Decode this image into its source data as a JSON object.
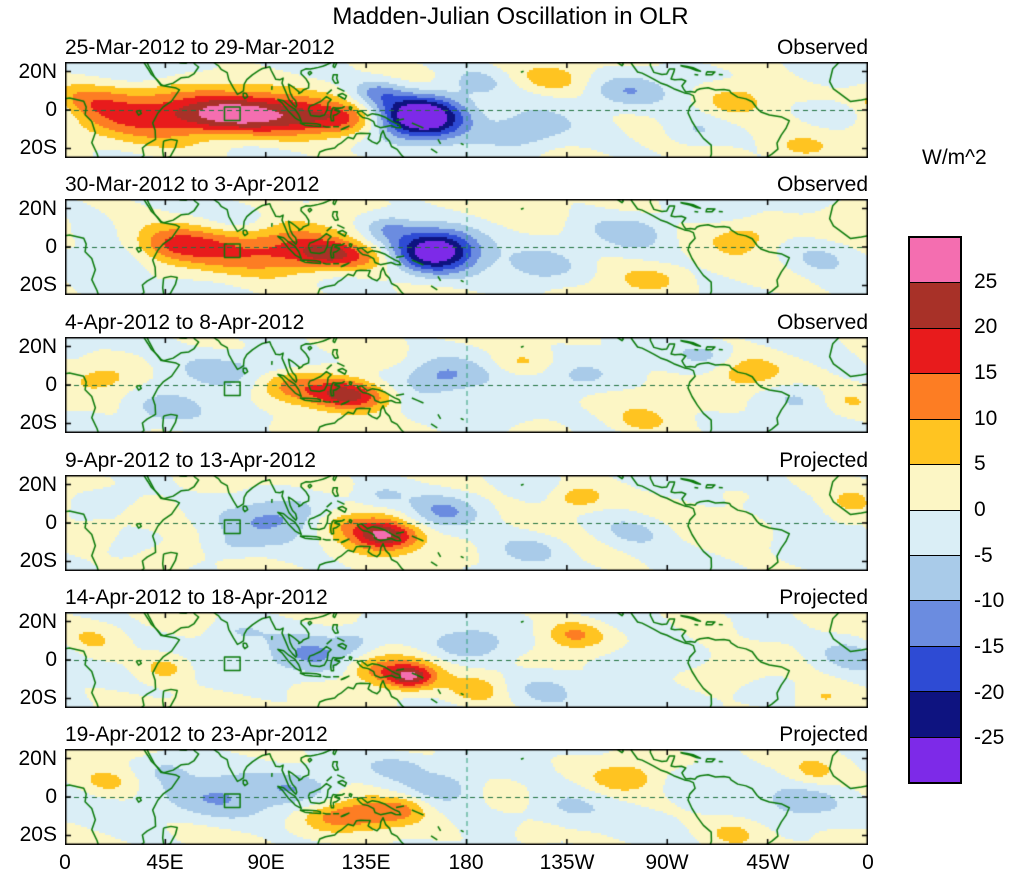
{
  "title": "Madden-Julian Oscillation in OLR",
  "axes": {
    "y_ticks": [
      "20N",
      "0",
      "20S"
    ],
    "x_ticks": [
      "0",
      "45E",
      "90E",
      "135E",
      "180",
      "135W",
      "90W",
      "45W",
      "0"
    ]
  },
  "colorbar": {
    "unit_label": "W/m^2",
    "tick_labels": [
      "25",
      "20",
      "15",
      "10",
      "5",
      "0",
      "-5",
      "-10",
      "-15",
      "-20",
      "-25"
    ]
  },
  "chart_data": {
    "type": "heatmap",
    "subtype": "filled-contour-longitude-latitude-map-sequence",
    "lon_range": [
      0,
      360
    ],
    "lat_range": [
      -25,
      25
    ],
    "levels_wm2": [
      -25,
      -20,
      -15,
      -10,
      -5,
      0,
      5,
      10,
      15,
      20,
      25
    ],
    "colors_low_to_high": [
      "#7d2ae8",
      "#0e1380",
      "#2e4bd4",
      "#6b8ce0",
      "#a9cbe9",
      "#daeef6",
      "#fcf6c5",
      "#ffc421",
      "#fd7d23",
      "#e81b1c",
      "#a83128",
      "#f46eb0"
    ],
    "coast_color": "#0a7a0a",
    "grid": {
      "equator_dashed": true,
      "dateline_dashed": true
    },
    "marker_box": {
      "lon": [
        71.5,
        78.5
      ],
      "lat": [
        -5.5,
        1.5
      ]
    },
    "background_ripple": {
      "amp": 2.3,
      "amp2": 1.2
    },
    "panels": [
      {
        "date_range": "25-Mar-2012 to 29-Mar-2012",
        "status": "Observed",
        "blobs": [
          [
            40,
            -1,
            16,
            28,
            10
          ],
          [
            85,
            -2,
            16,
            18,
            8
          ],
          [
            68,
            -3,
            8,
            14,
            6
          ],
          [
            112,
            -4,
            13,
            16,
            7
          ],
          [
            128,
            -5,
            8,
            10,
            6
          ],
          [
            300,
            5,
            9,
            11,
            6
          ],
          [
            330,
            -20,
            6,
            10,
            5
          ],
          [
            218,
            16,
            6,
            10,
            5
          ],
          [
            10,
            6,
            6,
            12,
            6
          ],
          [
            160,
            -3,
            -34,
            14,
            8
          ],
          [
            140,
            9,
            -10,
            8,
            5
          ],
          [
            205,
            -12,
            -9,
            13,
            7
          ],
          [
            252,
            10,
            -9,
            12,
            6
          ],
          [
            350,
            -2,
            -8,
            12,
            6
          ],
          [
            282,
            -12,
            -6,
            10,
            6
          ],
          [
            35,
            20,
            -5,
            10,
            5
          ],
          [
            185,
            15,
            -6,
            9,
            5
          ]
        ]
      },
      {
        "date_range": "30-Mar-2012 to 3-Apr-2012",
        "status": "Observed",
        "blobs": [
          [
            70,
            -1,
            12,
            22,
            9
          ],
          [
            105,
            -3,
            14,
            16,
            8
          ],
          [
            119,
            -4,
            12,
            9,
            5
          ],
          [
            48,
            1,
            8,
            12,
            6
          ],
          [
            135,
            -6,
            8,
            9,
            5
          ],
          [
            305,
            6,
            8,
            11,
            6
          ],
          [
            262,
            -17,
            6,
            10,
            5
          ],
          [
            352,
            14,
            5,
            9,
            5
          ],
          [
            215,
            18,
            5,
            9,
            5
          ],
          [
            166,
            -2,
            -30,
            13,
            8
          ],
          [
            145,
            10,
            -9,
            8,
            5
          ],
          [
            215,
            -10,
            -8,
            13,
            7
          ],
          [
            255,
            8,
            -7,
            11,
            6
          ],
          [
            20,
            -8,
            -6,
            12,
            7
          ],
          [
            340,
            -5,
            -6,
            11,
            6
          ],
          [
            80,
            14,
            -5,
            10,
            5
          ]
        ]
      },
      {
        "date_range": "4-Apr-2012 to 8-Apr-2012",
        "status": "Observed",
        "blobs": [
          [
            118,
            -3,
            13,
            14,
            7
          ],
          [
            127,
            -5,
            13,
            8,
            5
          ],
          [
            140,
            -7,
            8,
            8,
            5
          ],
          [
            98,
            -1,
            7,
            10,
            6
          ],
          [
            305,
            6,
            8,
            10,
            6
          ],
          [
            258,
            -19,
            6,
            9,
            5
          ],
          [
            205,
            12,
            6,
            9,
            5
          ],
          [
            18,
            4,
            6,
            9,
            5
          ],
          [
            352,
            -8,
            5,
            9,
            5
          ],
          [
            70,
            8,
            -9,
            16,
            7
          ],
          [
            45,
            -12,
            -7,
            12,
            6
          ],
          [
            168,
            4,
            -11,
            13,
            7
          ],
          [
            195,
            -15,
            -7,
            11,
            6
          ],
          [
            232,
            4,
            -6,
            12,
            6
          ],
          [
            330,
            -6,
            -6,
            12,
            6
          ],
          [
            288,
            16,
            -5,
            9,
            5
          ],
          [
            95,
            12,
            -5,
            8,
            4
          ]
        ]
      },
      {
        "date_range": "9-Apr-2012 to 13-Apr-2012",
        "status": "Projected",
        "blobs": [
          [
            138,
            -4,
            11,
            12,
            7
          ],
          [
            141,
            -6,
            14,
            8,
            5
          ],
          [
            152,
            -8,
            8,
            8,
            5
          ],
          [
            122,
            0,
            7,
            9,
            5
          ],
          [
            230,
            13,
            10,
            9,
            5
          ],
          [
            45,
            -18,
            7,
            9,
            5
          ],
          [
            310,
            -3,
            6,
            10,
            6
          ],
          [
            352,
            10,
            5,
            8,
            5
          ],
          [
            15,
            -5,
            5,
            8,
            5
          ],
          [
            95,
            3,
            -10,
            17,
            8
          ],
          [
            170,
            6,
            -9,
            11,
            6
          ],
          [
            208,
            -14,
            -8,
            12,
            6
          ],
          [
            322,
            3,
            -6,
            12,
            7
          ],
          [
            20,
            12,
            -6,
            10,
            5
          ],
          [
            255,
            -4,
            -6,
            12,
            6
          ],
          [
            142,
            14,
            -5,
            7,
            4
          ],
          [
            75,
            -12,
            -5,
            9,
            5
          ]
        ]
      },
      {
        "date_range": "14-Apr-2012 to 18-Apr-2012",
        "status": "Projected",
        "blobs": [
          [
            150,
            -7,
            12,
            11,
            6
          ],
          [
            155,
            -9,
            15,
            7,
            4
          ],
          [
            135,
            -4,
            8,
            9,
            5
          ],
          [
            228,
            13,
            10,
            9,
            5
          ],
          [
            45,
            -4,
            8,
            8,
            5
          ],
          [
            300,
            -6,
            6,
            10,
            6
          ],
          [
            338,
            -20,
            5,
            8,
            5
          ],
          [
            12,
            10,
            5,
            8,
            5
          ],
          [
            185,
            -15,
            6,
            8,
            5
          ],
          [
            108,
            1,
            -9,
            16,
            8
          ],
          [
            182,
            8,
            -8,
            12,
            6
          ],
          [
            215,
            -15,
            -6,
            11,
            6
          ],
          [
            258,
            0,
            -6,
            12,
            6
          ],
          [
            352,
            3,
            -6,
            10,
            6
          ],
          [
            75,
            14,
            -6,
            10,
            5
          ],
          [
            310,
            15,
            -5,
            9,
            5
          ],
          [
            130,
            10,
            -5,
            7,
            4
          ]
        ]
      },
      {
        "date_range": "19-Apr-2012 to 23-Apr-2012",
        "status": "Projected",
        "blobs": [
          [
            135,
            -9,
            11,
            12,
            6
          ],
          [
            118,
            -11,
            7,
            9,
            5
          ],
          [
            152,
            -6,
            7,
            8,
            5
          ],
          [
            250,
            10,
            8,
            10,
            5
          ],
          [
            300,
            -18,
            6,
            9,
            5
          ],
          [
            20,
            8,
            6,
            9,
            5
          ],
          [
            210,
            -20,
            5,
            8,
            5
          ],
          [
            335,
            12,
            5,
            8,
            5
          ],
          [
            70,
            -1,
            -9,
            20,
            9
          ],
          [
            105,
            5,
            -7,
            12,
            6
          ],
          [
            170,
            6,
            -8,
            13,
            7
          ],
          [
            222,
            -6,
            -6,
            13,
            7
          ],
          [
            330,
            -2,
            -6,
            14,
            7
          ],
          [
            150,
            16,
            -5,
            8,
            4
          ],
          [
            282,
            8,
            -5,
            10,
            6
          ],
          [
            45,
            15,
            -5,
            9,
            5
          ]
        ]
      }
    ]
  }
}
